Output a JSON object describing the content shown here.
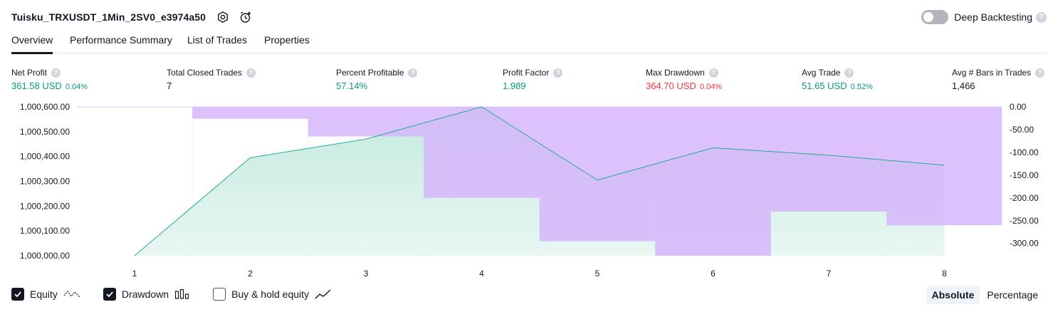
{
  "header": {
    "title": "Tuisku_TRXUSDT_1Min_2SV0_e3974a50",
    "deep_backtesting_label": "Deep Backtesting",
    "help_glyph": "?"
  },
  "tabs": [
    {
      "label": "Overview",
      "active": true
    },
    {
      "label": "Performance Summary",
      "active": false
    },
    {
      "label": "List of Trades",
      "active": false
    },
    {
      "label": "Properties",
      "active": false
    }
  ],
  "stats": [
    {
      "label": "Net Profit",
      "value": "361.58 USD",
      "pct": "0.04%",
      "tone": "green"
    },
    {
      "label": "Total Closed Trades",
      "value": "7",
      "pct": "",
      "tone": "plain"
    },
    {
      "label": "Percent Profitable",
      "value": "57.14%",
      "pct": "",
      "tone": "green"
    },
    {
      "label": "Profit Factor",
      "value": "1.989",
      "pct": "",
      "tone": "green"
    },
    {
      "label": "Max Drawdown",
      "value": "364.70 USD",
      "pct": "0.04%",
      "tone": "red"
    },
    {
      "label": "Avg Trade",
      "value": "51.65 USD",
      "pct": "0.52%",
      "tone": "green"
    },
    {
      "label": "Avg # Bars in Trades",
      "value": "1,466",
      "pct": "",
      "tone": "plain"
    }
  ],
  "chart_data": {
    "type": "area",
    "x": [
      1,
      2,
      3,
      4,
      5,
      6,
      7,
      8
    ],
    "series": [
      {
        "name": "Equity",
        "axis": "left",
        "values": [
          1000000,
          1000395,
          1000470,
          1000600,
          1000305,
          1000435,
          1000405,
          1000365
        ]
      },
      {
        "name": "Drawdown",
        "axis": "right",
        "bars": [
          {
            "from": 0.5,
            "to": 1.5,
            "value": 0
          },
          {
            "from": 1.5,
            "to": 2.5,
            "value": -26
          },
          {
            "from": 2.5,
            "to": 3.5,
            "value": -65
          },
          {
            "from": 3.5,
            "to": 4.5,
            "value": -200
          },
          {
            "from": 4.5,
            "to": 5.5,
            "value": -295
          },
          {
            "from": 5.5,
            "to": 6.5,
            "value": -327
          },
          {
            "from": 6.5,
            "to": 7.5,
            "value": -230
          },
          {
            "from": 7.5,
            "to": 8.5,
            "value": -260
          }
        ]
      }
    ],
    "y_left_ticks": [
      "1,000,600.00",
      "1,000,500.00",
      "1,000,400.00",
      "1,000,300.00",
      "1,000,200.00",
      "1,000,100.00",
      "1,000,000.00"
    ],
    "y_left_range": [
      1000000,
      1000600
    ],
    "y_right_ticks": [
      "0.00",
      "-50.00",
      "-100.00",
      "-150.00",
      "-200.00",
      "-250.00",
      "-300.00"
    ],
    "y_right_range": [
      -327,
      0
    ],
    "x_ticks": [
      "1",
      "2",
      "3",
      "4",
      "5",
      "6",
      "7",
      "8"
    ],
    "colors": {
      "equity_line": "#22ab94",
      "equity_fill": "#c9ece3",
      "drawdown_fill": "#d5b3fb"
    },
    "grid": "vertical"
  },
  "legend": [
    {
      "label": "Equity",
      "checked": true,
      "icon": "equity-line-icon"
    },
    {
      "label": "Drawdown",
      "checked": true,
      "icon": "drawdown-bars-icon"
    },
    {
      "label": "Buy & hold equity",
      "checked": false,
      "icon": "buy-hold-line-icon"
    }
  ],
  "modes": [
    {
      "label": "Absolute",
      "active": true
    },
    {
      "label": "Percentage",
      "active": false
    }
  ]
}
